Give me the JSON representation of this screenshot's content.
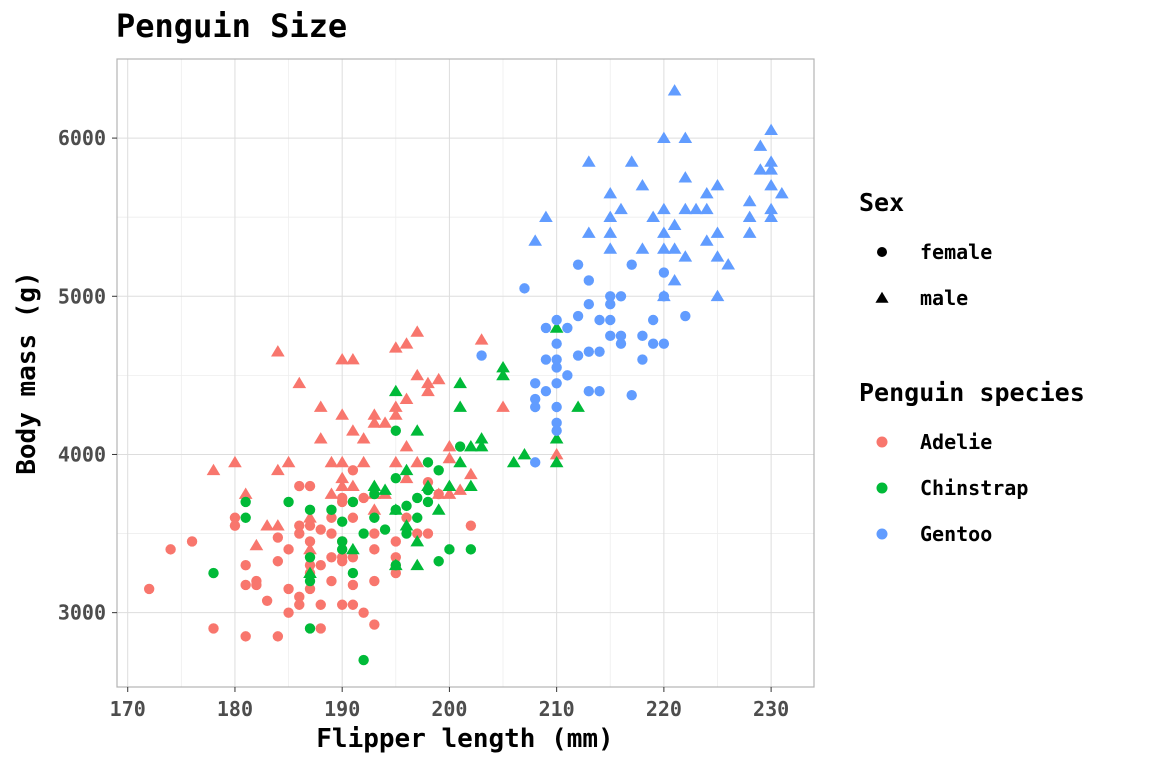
{
  "chart_data": {
    "type": "scatter",
    "title": "Penguin Size",
    "xlabel": "Flipper length (mm)",
    "ylabel": "Body mass (g)",
    "xlim": [
      169,
      234
    ],
    "ylim": [
      2530,
      6500
    ],
    "x_ticks": [
      170,
      180,
      190,
      200,
      210,
      220,
      230
    ],
    "y_ticks": [
      3000,
      4000,
      5000,
      6000
    ],
    "grid": true,
    "legend_placement": "right",
    "legends": [
      {
        "title": "Sex",
        "entries": [
          {
            "label": "female",
            "shape": "circle"
          },
          {
            "label": "male",
            "shape": "triangle"
          }
        ]
      },
      {
        "title": "Penguin species",
        "entries": [
          {
            "label": "Adelie",
            "color": "#F8766D"
          },
          {
            "label": "Chinstrap",
            "color": "#00BA38"
          },
          {
            "label": "Gentoo",
            "color": "#619CFF"
          }
        ]
      }
    ],
    "series": [
      {
        "species": "Adelie",
        "sex": "female",
        "color": "#F8766D",
        "shape": "circle",
        "points": [
          [
            172,
            3150
          ],
          [
            174,
            3400
          ],
          [
            176,
            3450
          ],
          [
            178,
            2900
          ],
          [
            180,
            3550
          ],
          [
            180,
            3600
          ],
          [
            181,
            2850
          ],
          [
            181,
            3175
          ],
          [
            181,
            3300
          ],
          [
            182,
            3175
          ],
          [
            182,
            3200
          ],
          [
            183,
            3075
          ],
          [
            184,
            2850
          ],
          [
            184,
            3325
          ],
          [
            184,
            3475
          ],
          [
            185,
            3000
          ],
          [
            185,
            3150
          ],
          [
            185,
            3400
          ],
          [
            186,
            3050
          ],
          [
            186,
            3100
          ],
          [
            186,
            3500
          ],
          [
            186,
            3550
          ],
          [
            186,
            3800
          ],
          [
            187,
            3150
          ],
          [
            187,
            3250
          ],
          [
            187,
            3300
          ],
          [
            187,
            3450
          ],
          [
            187,
            3550
          ],
          [
            187,
            3800
          ],
          [
            188,
            2900
          ],
          [
            188,
            3050
          ],
          [
            188,
            3300
          ],
          [
            188,
            3525
          ],
          [
            189,
            3200
          ],
          [
            189,
            3350
          ],
          [
            189,
            3500
          ],
          [
            189,
            3600
          ],
          [
            190,
            3050
          ],
          [
            190,
            3325
          ],
          [
            190,
            3350
          ],
          [
            190,
            3450
          ],
          [
            190,
            3700
          ],
          [
            190,
            3725
          ],
          [
            191,
            3050
          ],
          [
            191,
            3175
          ],
          [
            191,
            3350
          ],
          [
            191,
            3600
          ],
          [
            191,
            3700
          ],
          [
            191,
            3900
          ],
          [
            192,
            3000
          ],
          [
            192,
            3725
          ],
          [
            193,
            2925
          ],
          [
            193,
            3200
          ],
          [
            193,
            3400
          ],
          [
            193,
            3500
          ],
          [
            195,
            3250
          ],
          [
            195,
            3300
          ],
          [
            195,
            3350
          ],
          [
            195,
            3450
          ],
          [
            196,
            3600
          ],
          [
            197,
            3500
          ],
          [
            198,
            3500
          ],
          [
            198,
            3825
          ],
          [
            199,
            3750
          ],
          [
            202,
            3550
          ]
        ]
      },
      {
        "species": "Adelie",
        "sex": "male",
        "color": "#F8766D",
        "shape": "triangle",
        "points": [
          [
            178,
            3900
          ],
          [
            180,
            3950
          ],
          [
            181,
            3750
          ],
          [
            182,
            3425
          ],
          [
            183,
            3550
          ],
          [
            184,
            3550
          ],
          [
            184,
            3900
          ],
          [
            184,
            4650
          ],
          [
            185,
            3950
          ],
          [
            186,
            4450
          ],
          [
            187,
            3400
          ],
          [
            187,
            3600
          ],
          [
            188,
            4100
          ],
          [
            188,
            4300
          ],
          [
            189,
            3950
          ],
          [
            189,
            3750
          ],
          [
            190,
            3800
          ],
          [
            190,
            3850
          ],
          [
            190,
            3950
          ],
          [
            190,
            4250
          ],
          [
            190,
            4600
          ],
          [
            191,
            3800
          ],
          [
            191,
            4150
          ],
          [
            191,
            4600
          ],
          [
            192,
            3950
          ],
          [
            192,
            4100
          ],
          [
            193,
            3650
          ],
          [
            193,
            3750
          ],
          [
            193,
            4200
          ],
          [
            193,
            4250
          ],
          [
            194,
            3750
          ],
          [
            194,
            4200
          ],
          [
            195,
            3950
          ],
          [
            195,
            4250
          ],
          [
            195,
            4300
          ],
          [
            195,
            4675
          ],
          [
            196,
            3850
          ],
          [
            196,
            4050
          ],
          [
            196,
            4350
          ],
          [
            196,
            4700
          ],
          [
            197,
            3950
          ],
          [
            197,
            4500
          ],
          [
            197,
            4775
          ],
          [
            198,
            4400
          ],
          [
            198,
            4450
          ],
          [
            199,
            3750
          ],
          [
            199,
            4475
          ],
          [
            200,
            3750
          ],
          [
            200,
            3975
          ],
          [
            200,
            4050
          ],
          [
            201,
            3775
          ],
          [
            202,
            3875
          ],
          [
            203,
            4725
          ],
          [
            205,
            4300
          ],
          [
            210,
            4000
          ]
        ]
      },
      {
        "species": "Chinstrap",
        "sex": "female",
        "color": "#00BA38",
        "shape": "circle",
        "points": [
          [
            178,
            3250
          ],
          [
            181,
            3600
          ],
          [
            181,
            3700
          ],
          [
            185,
            3700
          ],
          [
            187,
            2900
          ],
          [
            187,
            3350
          ],
          [
            187,
            3650
          ],
          [
            187,
            3200
          ],
          [
            189,
            3650
          ],
          [
            190,
            3400
          ],
          [
            190,
            3450
          ],
          [
            190,
            3575
          ],
          [
            191,
            3250
          ],
          [
            191,
            3700
          ],
          [
            192,
            2700
          ],
          [
            192,
            3500
          ],
          [
            193,
            3600
          ],
          [
            193,
            3750
          ],
          [
            194,
            3525
          ],
          [
            195,
            3300
          ],
          [
            195,
            3650
          ],
          [
            195,
            3850
          ],
          [
            195,
            4150
          ],
          [
            196,
            3500
          ],
          [
            196,
            3675
          ],
          [
            197,
            3600
          ],
          [
            197,
            3725
          ],
          [
            198,
            3700
          ],
          [
            198,
            3775
          ],
          [
            198,
            3950
          ],
          [
            199,
            3325
          ],
          [
            199,
            3900
          ],
          [
            200,
            3400
          ],
          [
            201,
            4050
          ],
          [
            202,
            3400
          ]
        ]
      },
      {
        "species": "Chinstrap",
        "sex": "male",
        "color": "#00BA38",
        "shape": "triangle",
        "points": [
          [
            187,
            3250
          ],
          [
            191,
            3400
          ],
          [
            193,
            3800
          ],
          [
            194,
            3775
          ],
          [
            195,
            3300
          ],
          [
            195,
            3650
          ],
          [
            195,
            4400
          ],
          [
            196,
            3550
          ],
          [
            196,
            3900
          ],
          [
            197,
            3300
          ],
          [
            197,
            3450
          ],
          [
            197,
            4150
          ],
          [
            198,
            3800
          ],
          [
            199,
            3650
          ],
          [
            200,
            3800
          ],
          [
            201,
            3950
          ],
          [
            201,
            4300
          ],
          [
            201,
            4450
          ],
          [
            202,
            3800
          ],
          [
            202,
            4050
          ],
          [
            203,
            4050
          ],
          [
            203,
            4100
          ],
          [
            205,
            4500
          ],
          [
            205,
            4550
          ],
          [
            206,
            3950
          ],
          [
            207,
            4000
          ],
          [
            210,
            3950
          ],
          [
            210,
            4100
          ],
          [
            210,
            4800
          ],
          [
            212,
            4300
          ]
        ]
      },
      {
        "species": "Gentoo",
        "sex": "female",
        "color": "#619CFF",
        "shape": "circle",
        "points": [
          [
            203,
            4625
          ],
          [
            207,
            5050
          ],
          [
            208,
            3950
          ],
          [
            208,
            4300
          ],
          [
            208,
            4350
          ],
          [
            208,
            4450
          ],
          [
            209,
            4400
          ],
          [
            209,
            4600
          ],
          [
            209,
            4800
          ],
          [
            210,
            4150
          ],
          [
            210,
            4200
          ],
          [
            210,
            4300
          ],
          [
            210,
            4450
          ],
          [
            210,
            4550
          ],
          [
            210,
            4600
          ],
          [
            210,
            4700
          ],
          [
            210,
            4850
          ],
          [
            211,
            4500
          ],
          [
            211,
            4800
          ],
          [
            212,
            4625
          ],
          [
            212,
            4875
          ],
          [
            212,
            5200
          ],
          [
            213,
            4400
          ],
          [
            213,
            4650
          ],
          [
            213,
            4950
          ],
          [
            213,
            5100
          ],
          [
            214,
            4650
          ],
          [
            214,
            4400
          ],
          [
            214,
            4850
          ],
          [
            215,
            4750
          ],
          [
            215,
            4850
          ],
          [
            215,
            5000
          ],
          [
            215,
            4950
          ],
          [
            216,
            4700
          ],
          [
            216,
            4750
          ],
          [
            216,
            5000
          ],
          [
            217,
            4375
          ],
          [
            217,
            5200
          ],
          [
            218,
            4600
          ],
          [
            218,
            4750
          ],
          [
            219,
            4700
          ],
          [
            219,
            4850
          ],
          [
            220,
            4700
          ],
          [
            220,
            5000
          ],
          [
            220,
            5150
          ],
          [
            222,
            4875
          ]
        ]
      },
      {
        "species": "Gentoo",
        "sex": "male",
        "color": "#619CFF",
        "shape": "triangle",
        "points": [
          [
            208,
            5350
          ],
          [
            209,
            5500
          ],
          [
            213,
            5400
          ],
          [
            213,
            5850
          ],
          [
            215,
            5300
          ],
          [
            215,
            5400
          ],
          [
            215,
            5500
          ],
          [
            215,
            5650
          ],
          [
            216,
            5550
          ],
          [
            217,
            5850
          ],
          [
            218,
            5300
          ],
          [
            218,
            5700
          ],
          [
            219,
            5500
          ],
          [
            220,
            5000
          ],
          [
            220,
            5300
          ],
          [
            220,
            5400
          ],
          [
            220,
            5550
          ],
          [
            220,
            6000
          ],
          [
            221,
            5100
          ],
          [
            221,
            5300
          ],
          [
            221,
            5450
          ],
          [
            221,
            6300
          ],
          [
            222,
            5250
          ],
          [
            222,
            5550
          ],
          [
            222,
            5750
          ],
          [
            222,
            6000
          ],
          [
            223,
            5550
          ],
          [
            224,
            5350
          ],
          [
            224,
            5550
          ],
          [
            224,
            5650
          ],
          [
            225,
            5000
          ],
          [
            225,
            5250
          ],
          [
            225,
            5400
          ],
          [
            225,
            5700
          ],
          [
            226,
            5200
          ],
          [
            228,
            5400
          ],
          [
            228,
            5500
          ],
          [
            228,
            5600
          ],
          [
            229,
            5800
          ],
          [
            229,
            5950
          ],
          [
            230,
            5500
          ],
          [
            230,
            5550
          ],
          [
            230,
            5700
          ],
          [
            230,
            5800
          ],
          [
            230,
            5850
          ],
          [
            230,
            6050
          ],
          [
            231,
            5650
          ]
        ]
      }
    ]
  }
}
